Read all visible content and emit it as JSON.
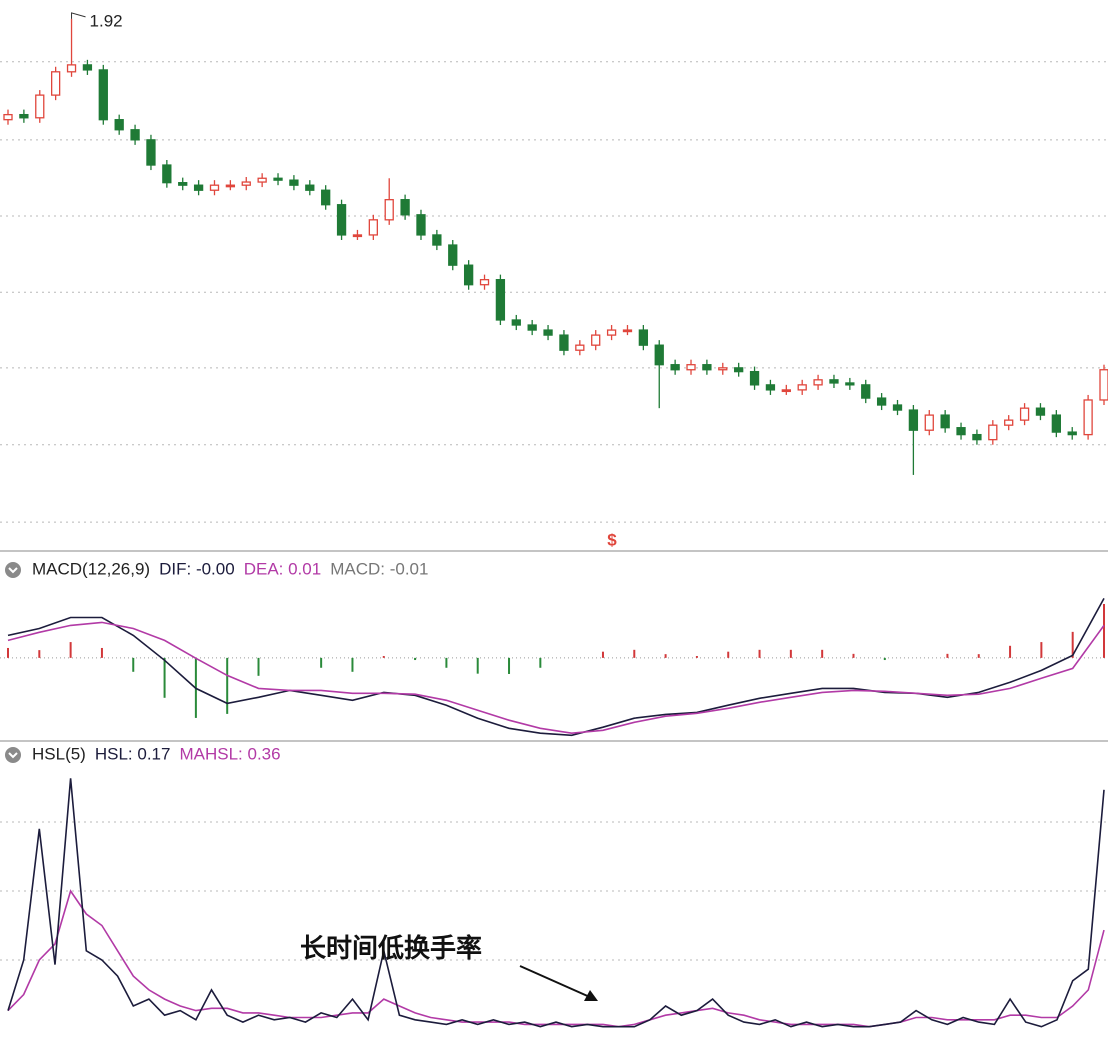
{
  "chart_data": [
    {
      "type": "candlestick",
      "ylim": [
        1.08,
        1.95
      ],
      "grid_values": [
        1.852,
        1.728,
        1.607,
        1.486,
        1.366,
        1.244,
        1.121
      ],
      "up_color": "#e0463c",
      "down_color": "#1f7a36",
      "marker": "$",
      "open": [
        1.76,
        1.768,
        1.763,
        1.799,
        1.836,
        1.847,
        1.839,
        1.76,
        1.744,
        1.728,
        1.688,
        1.66,
        1.656,
        1.648,
        1.656,
        1.656,
        1.661,
        1.667,
        1.664,
        1.656,
        1.648,
        1.625,
        1.577,
        1.577,
        1.601,
        1.633,
        1.609,
        1.577,
        1.561,
        1.529,
        1.498,
        1.506,
        1.442,
        1.434,
        1.426,
        1.418,
        1.394,
        1.402,
        1.418,
        1.426,
        1.426,
        1.402,
        1.371,
        1.363,
        1.371,
        1.363,
        1.366,
        1.36,
        1.339,
        1.331,
        1.331,
        1.339,
        1.347,
        1.342,
        1.339,
        1.318,
        1.307,
        1.299,
        1.267,
        1.291,
        1.271,
        1.26,
        1.252,
        1.275,
        1.283,
        1.302,
        1.291,
        1.264,
        1.26,
        1.315
      ],
      "high": [
        1.776,
        1.776,
        1.807,
        1.844,
        1.92,
        1.855,
        1.847,
        1.768,
        1.752,
        1.736,
        1.696,
        1.668,
        1.664,
        1.664,
        1.664,
        1.669,
        1.675,
        1.675,
        1.672,
        1.664,
        1.656,
        1.633,
        1.585,
        1.609,
        1.667,
        1.641,
        1.617,
        1.585,
        1.569,
        1.537,
        1.514,
        1.514,
        1.45,
        1.442,
        1.434,
        1.426,
        1.41,
        1.426,
        1.434,
        1.434,
        1.434,
        1.41,
        1.379,
        1.379,
        1.379,
        1.374,
        1.374,
        1.368,
        1.347,
        1.339,
        1.347,
        1.355,
        1.355,
        1.35,
        1.347,
        1.326,
        1.315,
        1.307,
        1.299,
        1.299,
        1.279,
        1.268,
        1.283,
        1.291,
        1.31,
        1.31,
        1.299,
        1.272,
        1.323,
        1.371
      ],
      "low": [
        1.752,
        1.755,
        1.755,
        1.791,
        1.828,
        1.831,
        1.752,
        1.736,
        1.72,
        1.68,
        1.652,
        1.648,
        1.64,
        1.64,
        1.648,
        1.648,
        1.653,
        1.656,
        1.648,
        1.64,
        1.617,
        1.569,
        1.569,
        1.569,
        1.593,
        1.601,
        1.569,
        1.553,
        1.521,
        1.49,
        1.49,
        1.434,
        1.426,
        1.418,
        1.41,
        1.386,
        1.386,
        1.394,
        1.41,
        1.418,
        1.394,
        1.302,
        1.355,
        1.355,
        1.355,
        1.355,
        1.352,
        1.331,
        1.323,
        1.323,
        1.323,
        1.331,
        1.334,
        1.331,
        1.31,
        1.299,
        1.291,
        1.196,
        1.259,
        1.263,
        1.252,
        1.244,
        1.244,
        1.267,
        1.275,
        1.283,
        1.256,
        1.252,
        1.252,
        1.307
      ],
      "close": [
        1.768,
        1.763,
        1.799,
        1.836,
        1.847,
        1.839,
        1.76,
        1.744,
        1.728,
        1.688,
        1.66,
        1.656,
        1.648,
        1.656,
        1.656,
        1.661,
        1.667,
        1.664,
        1.656,
        1.648,
        1.625,
        1.577,
        1.577,
        1.601,
        1.633,
        1.609,
        1.577,
        1.561,
        1.529,
        1.498,
        1.506,
        1.442,
        1.434,
        1.426,
        1.418,
        1.394,
        1.402,
        1.418,
        1.426,
        1.426,
        1.402,
        1.371,
        1.363,
        1.371,
        1.363,
        1.366,
        1.36,
        1.339,
        1.331,
        1.331,
        1.339,
        1.347,
        1.342,
        1.339,
        1.318,
        1.307,
        1.299,
        1.267,
        1.291,
        1.271,
        1.26,
        1.252,
        1.275,
        1.283,
        1.302,
        1.291,
        1.264,
        1.26,
        1.315,
        1.363
      ]
    },
    {
      "type": "macd",
      "title": "MACD(12,26,9)",
      "ylim": [
        -0.055,
        0.06
      ],
      "up_color": "#d2383a",
      "down_color": "#2a8a3a",
      "series": [
        {
          "name": "DIF: -0.00",
          "color": "#1c1c3c",
          "values": [
            0.0145,
            0.019,
            0.0261,
            0.0261,
            0.0145,
            -0.0016,
            -0.0197,
            -0.0294,
            -0.0255,
            -0.021,
            -0.0242,
            -0.0274,
            -0.0223,
            -0.0242,
            -0.0306,
            -0.039,
            -0.0455,
            -0.0487,
            -0.05,
            -0.0448,
            -0.039,
            -0.0365,
            -0.0352,
            -0.0306,
            -0.0261,
            -0.0229,
            -0.0197,
            -0.0197,
            -0.0223,
            -0.0229,
            -0.0255,
            -0.0223,
            -0.0158,
            -0.0081,
            0.0016,
            0.0384
          ]
        },
        {
          "name": "DEA: 0.01",
          "color": "#b23aa6",
          "values": [
            0.0113,
            0.0165,
            0.021,
            0.0229,
            0.019,
            0.0113,
            -0.0003,
            -0.0113,
            -0.0197,
            -0.021,
            -0.021,
            -0.0229,
            -0.0229,
            -0.0235,
            -0.0274,
            -0.0339,
            -0.0403,
            -0.0455,
            -0.0487,
            -0.0468,
            -0.0416,
            -0.0377,
            -0.0358,
            -0.0326,
            -0.0287,
            -0.0255,
            -0.0223,
            -0.021,
            -0.0216,
            -0.0229,
            -0.0242,
            -0.0235,
            -0.0197,
            -0.0132,
            -0.0068,
            0.021
          ]
        },
        {
          "name": "MACD: -0.01",
          "color": "#777777",
          "type": "bar",
          "values": [
            0.0064,
            0.005,
            0.0102,
            0.0064,
            -0.009,
            -0.0258,
            -0.0388,
            -0.0362,
            -0.0116,
            0,
            -0.0064,
            -0.009,
            0.0012,
            -0.0014,
            -0.0064,
            -0.0102,
            -0.0104,
            -0.0064,
            0,
            0.004,
            0.0052,
            0.0024,
            0.0012,
            0.004,
            0.0052,
            0.0052,
            0.0052,
            0.0026,
            -0.0014,
            0,
            0.0026,
            0.0024,
            0.0078,
            0.0102,
            0.0168,
            0.0348
          ]
        }
      ]
    },
    {
      "type": "line",
      "title": "HSL(5)",
      "ylim": [
        0,
        11.5
      ],
      "grid_values": [
        3,
        6,
        9
      ],
      "annotation": "长时间低换手率",
      "series": [
        {
          "name": "HSL: 0.17",
          "color": "#1c1c3c",
          "values": [
            0.8,
            3.0,
            8.7,
            2.8,
            10.9,
            3.4,
            3.0,
            2.3,
            1.0,
            1.3,
            0.6,
            0.8,
            0.4,
            1.7,
            0.6,
            0.3,
            0.6,
            0.4,
            0.5,
            0.3,
            0.7,
            0.5,
            1.3,
            0.4,
            3.4,
            0.6,
            0.4,
            0.3,
            0.2,
            0.4,
            0.2,
            0.4,
            0.2,
            0.3,
            0.1,
            0.3,
            0.1,
            0.2,
            0.1,
            0.1,
            0.1,
            0.4,
            1.0,
            0.6,
            0.8,
            1.3,
            0.6,
            0.3,
            0.2,
            0.4,
            0.1,
            0.3,
            0.1,
            0.2,
            0.1,
            0.1,
            0.2,
            0.3,
            0.8,
            0.4,
            0.2,
            0.5,
            0.3,
            0.2,
            1.3,
            0.3,
            0.1,
            0.4,
            2.1,
            2.6,
            10.4
          ]
        },
        {
          "name": "MAHSL: 0.36",
          "color": "#b23aa6",
          "values": [
            0.8,
            1.5,
            3.0,
            3.7,
            6.0,
            5.0,
            4.5,
            3.4,
            2.3,
            1.7,
            1.3,
            1.0,
            0.8,
            0.9,
            0.9,
            0.7,
            0.7,
            0.6,
            0.5,
            0.5,
            0.5,
            0.6,
            0.7,
            0.7,
            1.3,
            1.0,
            0.7,
            0.5,
            0.4,
            0.3,
            0.3,
            0.3,
            0.3,
            0.2,
            0.2,
            0.2,
            0.2,
            0.2,
            0.2,
            0.1,
            0.2,
            0.4,
            0.6,
            0.7,
            0.8,
            0.9,
            0.7,
            0.6,
            0.4,
            0.3,
            0.2,
            0.2,
            0.2,
            0.2,
            0.2,
            0.1,
            0.2,
            0.3,
            0.5,
            0.5,
            0.4,
            0.4,
            0.4,
            0.4,
            0.6,
            0.6,
            0.5,
            0.5,
            1.0,
            1.7,
            4.3
          ]
        }
      ]
    }
  ]
}
